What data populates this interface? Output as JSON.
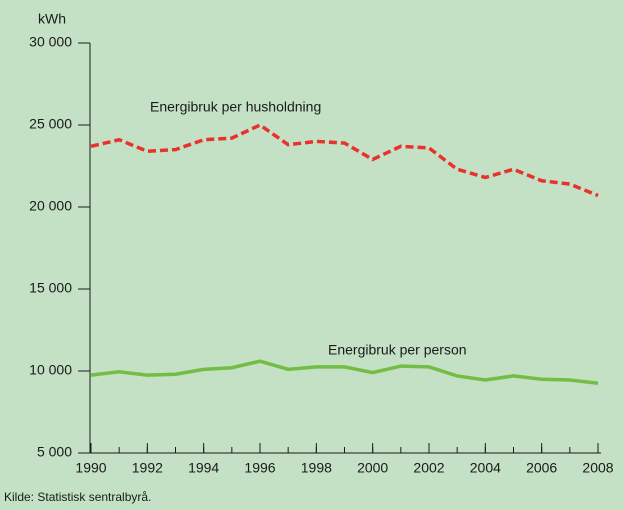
{
  "chart_data": {
    "type": "line",
    "y_label": "kWh",
    "source": "Kilde: Statistisk sentralbyrå.",
    "x": [
      1990,
      1991,
      1992,
      1993,
      1994,
      1995,
      1996,
      1997,
      1998,
      1999,
      2000,
      2001,
      2002,
      2003,
      2004,
      2005,
      2006,
      2007,
      2008
    ],
    "series": [
      {
        "name": "Energibruk per husholdning",
        "color": "#e8322b",
        "dashed": true,
        "values": [
          23700,
          24100,
          23400,
          23500,
          24100,
          24200,
          25000,
          23800,
          24000,
          23900,
          22900,
          23700,
          23600,
          22300,
          21800,
          22300,
          21600,
          21400,
          20700
        ]
      },
      {
        "name": "Energibruk per person",
        "color": "#74bd44",
        "dashed": false,
        "values": [
          9750,
          9950,
          9750,
          9800,
          10100,
          10200,
          10600,
          10100,
          10250,
          10250,
          9900,
          10300,
          10250,
          9700,
          9450,
          9700,
          9500,
          9450,
          9250
        ]
      }
    ],
    "xlim": [
      1990,
      2008
    ],
    "xticks": [
      1990,
      1992,
      1994,
      1996,
      1998,
      2000,
      2002,
      2004,
      2006,
      2008
    ],
    "ylim": [
      5000,
      30000
    ],
    "yticks": [
      {
        "value": 5000,
        "label": "5 000"
      },
      {
        "value": 10000,
        "label": "10 000"
      },
      {
        "value": 15000,
        "label": "15 000"
      },
      {
        "value": 20000,
        "label": "20 000"
      },
      {
        "value": 25000,
        "label": "25 000"
      },
      {
        "value": 30000,
        "label": "30 000"
      }
    ],
    "grid": false
  }
}
